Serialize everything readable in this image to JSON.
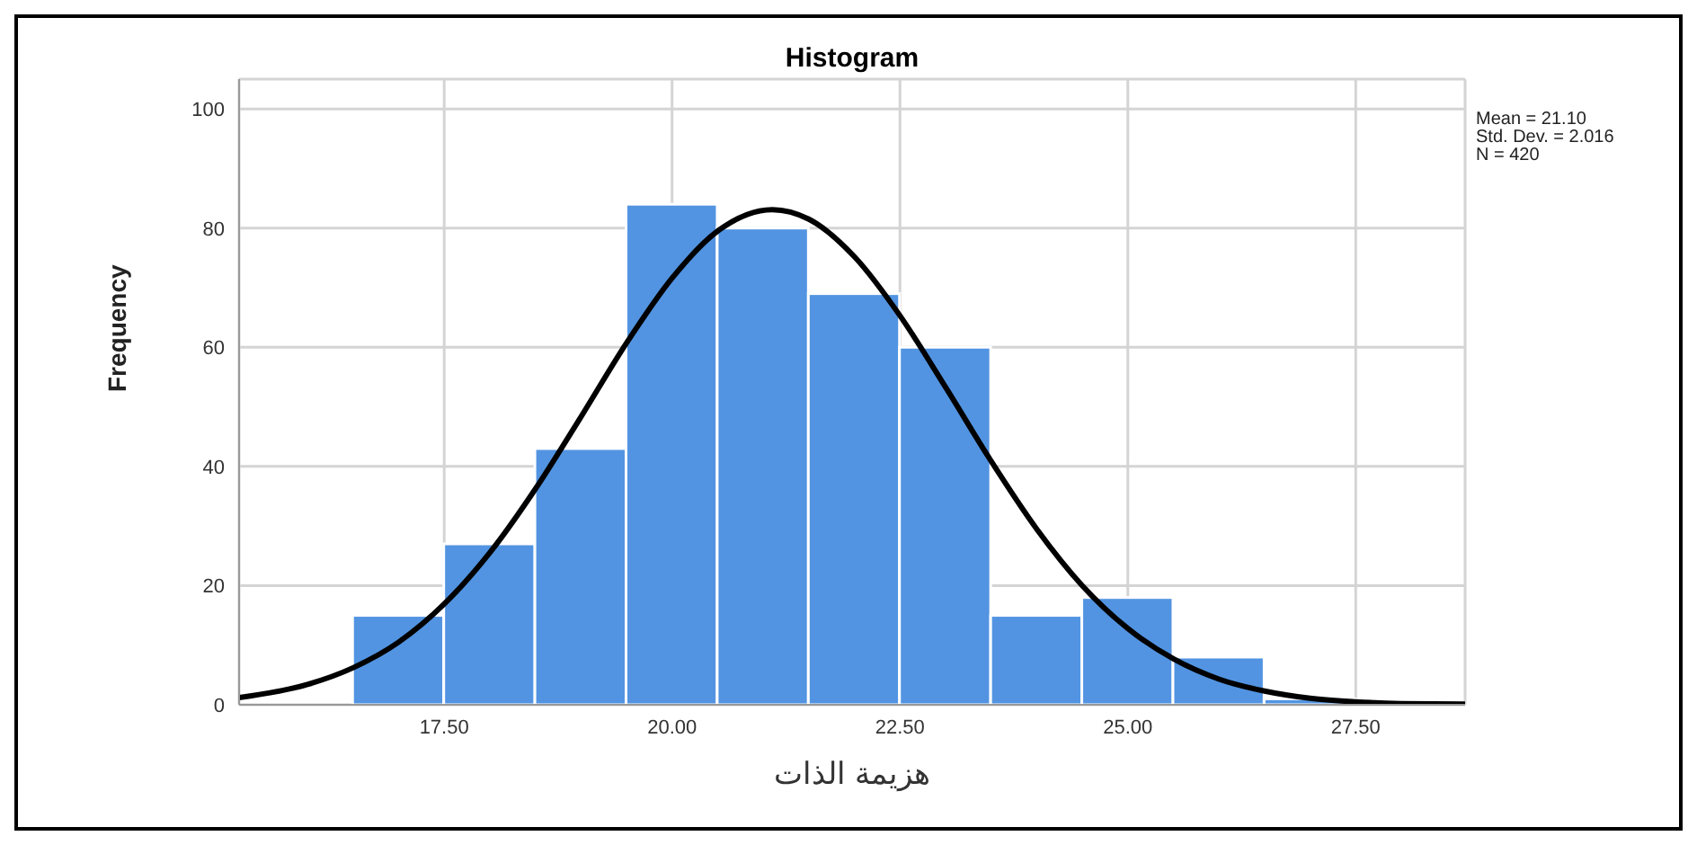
{
  "chart_data": {
    "type": "histogram",
    "title": "Histogram",
    "xlabel": "هزيمة الذات",
    "ylabel": "Frequency",
    "series": [
      {
        "type": "histogram",
        "color": "#5294e2",
        "bins": [
          16.5,
          17.5,
          18.5,
          19.5,
          20.5,
          21.5,
          22.5,
          23.5,
          24.5,
          25.5,
          26.5,
          27.5
        ],
        "values": [
          15,
          27,
          43,
          84,
          80,
          69,
          60,
          15,
          18,
          8,
          1
        ]
      },
      {
        "type": "line",
        "color": "#000000",
        "x": [
          15.25,
          16,
          16.5,
          17,
          17.5,
          18,
          18.5,
          19,
          19.5,
          20,
          20.5,
          21.1,
          21.5,
          22,
          22.5,
          23,
          23.5,
          24,
          24.5,
          25,
          25.5,
          26,
          26.5,
          27,
          27.5,
          28,
          28.7
        ],
        "values": [
          1.2,
          3.4,
          6.2,
          10.5,
          16.9,
          25.5,
          36.2,
          48.3,
          60.7,
          71.6,
          79.5,
          83.1,
          81.5,
          75.2,
          65.3,
          53.3,
          40.9,
          29.5,
          20.0,
          12.8,
          7.7,
          4.3,
          2.3,
          1.1,
          0.5,
          0.2,
          0.1
        ]
      }
    ],
    "xlim": [
      15.25,
      28.7
    ],
    "xticks": [
      {
        "value": 17.5,
        "label": "17.50"
      },
      {
        "value": 20,
        "label": "20.00"
      },
      {
        "value": 22.5,
        "label": "22.50"
      },
      {
        "value": 25,
        "label": "25.00"
      },
      {
        "value": 27.5,
        "label": "27.50"
      }
    ],
    "ylim": [
      0,
      105
    ],
    "yticks": [
      0,
      20,
      40,
      60,
      80,
      100
    ],
    "grid": true,
    "marker": "none",
    "line_style": "solid",
    "annotations": [
      "Mean = 21.10",
      "Std. Dev. = 2.016",
      "N = 420"
    ]
  }
}
